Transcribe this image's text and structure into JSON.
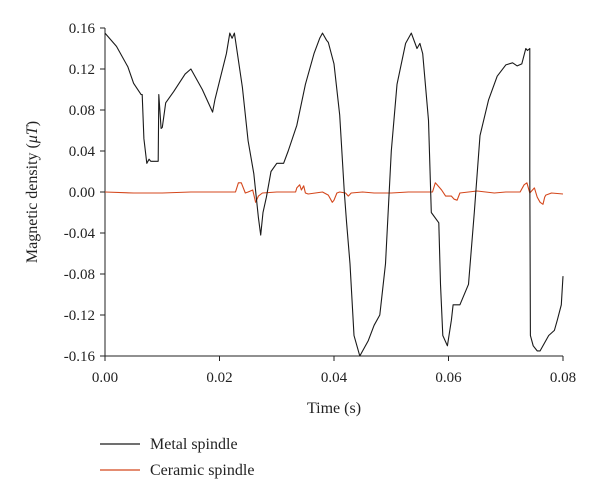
{
  "chart_data": {
    "type": "line",
    "xlabel": "Time (s)",
    "ylabel_main": "Magnetic density (",
    "ylabel_unit": "μT",
    "ylabel_close": ")",
    "xlim": [
      0,
      0.08
    ],
    "ylim": [
      -0.16,
      0.16
    ],
    "x_ticks": [
      "0.00",
      "0.02",
      "0.04",
      "0.06",
      "0.08"
    ],
    "x_tick_values": [
      0,
      0.02,
      0.04,
      0.06,
      0.08
    ],
    "y_ticks": [
      "0.16",
      "0.12",
      "0.08",
      "0.04",
      "0.00",
      "-0.04",
      "-0.08",
      "-0.12",
      "-0.16"
    ],
    "y_tick_values": [
      0.16,
      0.12,
      0.08,
      0.04,
      0.0,
      -0.04,
      -0.08,
      -0.12,
      -0.16
    ],
    "grid": false,
    "legend_position": "bottom-left, below plot",
    "series": [
      {
        "name": "Metal spindle",
        "color": "#1a1a1a",
        "x": [
          0.0,
          0.002,
          0.004,
          0.005,
          0.0063,
          0.0065,
          0.0068,
          0.0073,
          0.0077,
          0.008,
          0.0093,
          0.0094,
          0.0098,
          0.01,
          0.0106,
          0.012,
          0.014,
          0.015,
          0.017,
          0.0188,
          0.0192,
          0.02,
          0.0212,
          0.0218,
          0.0222,
          0.0226,
          0.024,
          0.025,
          0.026,
          0.0268,
          0.0272,
          0.0276,
          0.0282,
          0.029,
          0.03,
          0.0312,
          0.032,
          0.0335,
          0.035,
          0.0365,
          0.0375,
          0.038,
          0.0387,
          0.039,
          0.04,
          0.041,
          0.0418,
          0.0422,
          0.0428,
          0.0435,
          0.0445,
          0.046,
          0.047,
          0.048,
          0.049,
          0.05,
          0.051,
          0.0525,
          0.0535,
          0.0545,
          0.055,
          0.0555,
          0.0565,
          0.057,
          0.0583,
          0.0586,
          0.059,
          0.0598,
          0.0605,
          0.0608,
          0.062,
          0.0635,
          0.0645,
          0.0655,
          0.067,
          0.0685,
          0.07,
          0.0712,
          0.072,
          0.0728,
          0.0735,
          0.0738,
          0.0742,
          0.0742,
          0.0743,
          0.0748,
          0.0755,
          0.076,
          0.0775,
          0.0785,
          0.079,
          0.0797,
          0.08
        ],
        "y": [
          0.155,
          0.142,
          0.122,
          0.106,
          0.095,
          0.095,
          0.052,
          0.028,
          0.032,
          0.03,
          0.03,
          0.095,
          0.062,
          0.063,
          0.087,
          0.098,
          0.115,
          0.12,
          0.1,
          0.078,
          0.09,
          0.108,
          0.135,
          0.155,
          0.15,
          0.155,
          0.102,
          0.05,
          0.018,
          -0.025,
          -0.042,
          -0.02,
          -0.005,
          0.02,
          0.028,
          0.028,
          0.04,
          0.065,
          0.105,
          0.135,
          0.15,
          0.155,
          0.148,
          0.146,
          0.125,
          0.075,
          0.0,
          -0.03,
          -0.07,
          -0.14,
          -0.16,
          -0.145,
          -0.13,
          -0.12,
          -0.07,
          0.04,
          0.105,
          0.145,
          0.155,
          0.14,
          0.145,
          0.135,
          0.07,
          -0.02,
          -0.03,
          -0.09,
          -0.14,
          -0.15,
          -0.125,
          -0.11,
          -0.11,
          -0.09,
          -0.02,
          0.055,
          0.09,
          0.113,
          0.124,
          0.126,
          0.123,
          0.125,
          0.14,
          0.138,
          0.14,
          0.02,
          -0.14,
          -0.15,
          -0.155,
          -0.155,
          -0.14,
          -0.135,
          -0.125,
          -0.11,
          -0.082
        ]
      },
      {
        "name": "Ceramic spindle",
        "color": "#d4471c",
        "x": [
          0.0,
          0.005,
          0.01,
          0.015,
          0.02,
          0.0228,
          0.0233,
          0.0238,
          0.0245,
          0.025,
          0.0258,
          0.0263,
          0.0268,
          0.0275,
          0.03,
          0.0333,
          0.0335,
          0.034,
          0.0343,
          0.0347,
          0.035,
          0.0355,
          0.038,
          0.039,
          0.0397,
          0.04,
          0.0405,
          0.041,
          0.042,
          0.0425,
          0.043,
          0.045,
          0.047,
          0.05,
          0.053,
          0.055,
          0.0572,
          0.0577,
          0.058,
          0.0588,
          0.0595,
          0.0605,
          0.061,
          0.0615,
          0.062,
          0.065,
          0.068,
          0.07,
          0.0725,
          0.0732,
          0.0737,
          0.0742,
          0.075,
          0.0755,
          0.076,
          0.0765,
          0.0768,
          0.077,
          0.078,
          0.08
        ],
        "y": [
          0.0,
          -0.001,
          -0.001,
          0.0,
          0.0,
          0.0,
          0.009,
          0.009,
          -0.001,
          0.0,
          0.002,
          -0.01,
          -0.004,
          -0.001,
          0.0,
          0.0,
          0.004,
          0.007,
          0.002,
          0.006,
          -0.001,
          -0.002,
          0.0,
          -0.003,
          -0.01,
          -0.008,
          -0.001,
          0.0,
          -0.001,
          -0.004,
          -0.001,
          0.0,
          -0.001,
          -0.001,
          0.0,
          0.0,
          0.0,
          0.009,
          0.007,
          0.002,
          -0.004,
          -0.004,
          -0.007,
          -0.008,
          -0.001,
          0.001,
          -0.001,
          0.0,
          0.0,
          0.007,
          0.009,
          -0.001,
          0.004,
          -0.005,
          -0.01,
          -0.012,
          -0.005,
          -0.003,
          -0.001,
          -0.002
        ]
      }
    ]
  }
}
